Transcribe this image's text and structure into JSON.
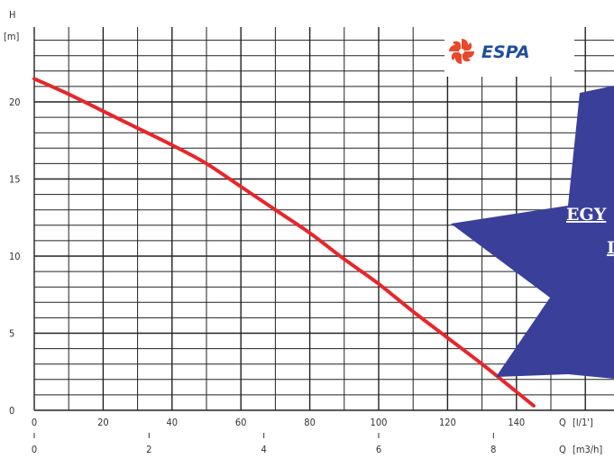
{
  "chart_data": {
    "type": "line",
    "title": "",
    "y_axis": {
      "label": "H",
      "unit": "[m]",
      "ticks": [
        0,
        5,
        10,
        15,
        20
      ],
      "range": [
        0,
        25
      ]
    },
    "x_axis_primary": {
      "label": "Q",
      "unit": "[l/1']",
      "ticks": [
        0,
        20,
        40,
        60,
        80,
        100,
        120,
        140
      ],
      "range": [
        0,
        160
      ]
    },
    "x_axis_secondary": {
      "label": "Q",
      "unit": "[m3/h]",
      "ticks": [
        0,
        2,
        4,
        6,
        8
      ]
    },
    "grid": true,
    "series": [
      {
        "color": "#e8262b",
        "points": [
          [
            0,
            21.5
          ],
          [
            10,
            20.5
          ],
          [
            20,
            19.4
          ],
          [
            30,
            18.3
          ],
          [
            40,
            17.2
          ],
          [
            50,
            16.0
          ],
          [
            60,
            14.5
          ],
          [
            70,
            13.0
          ],
          [
            80,
            11.5
          ],
          [
            90,
            9.8
          ],
          [
            100,
            8.2
          ],
          [
            110,
            6.4
          ],
          [
            120,
            4.7
          ],
          [
            130,
            3.0
          ],
          [
            140,
            1.2
          ],
          [
            145,
            0.3
          ]
        ]
      }
    ]
  },
  "logo": {
    "brand": "ESPA",
    "icon": "pinwheel-icon",
    "color": "#1d4f9c",
    "icon_color": "#e8482c"
  },
  "badge": {
    "line1": "EGY",
    "line2": "I",
    "color": "#3a3f9a"
  }
}
